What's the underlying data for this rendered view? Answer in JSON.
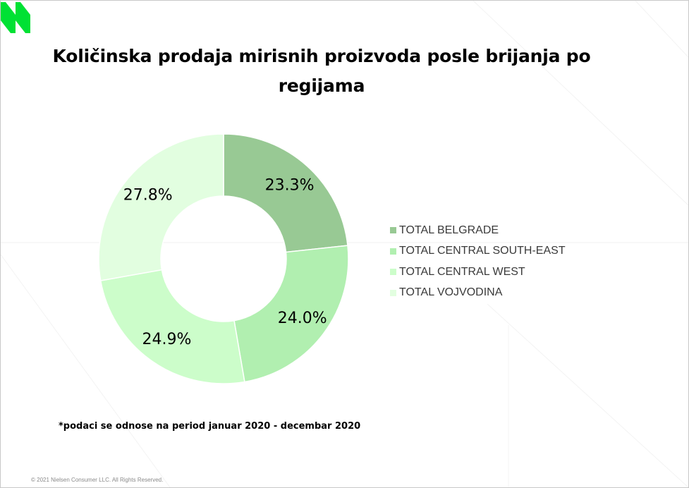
{
  "title": "Količinska prodaja mirisnih proizvoda posle brijanja po regijama",
  "footnote": "*podaci se odnose na period januar 2020 - decembar 2020",
  "copyright": "© 2021 Nielsen Consumer LLC. All Rights Reserved.",
  "logo": {
    "icon": "nielsen-logo-icon",
    "color": "#00e134"
  },
  "chart_data": {
    "type": "pie",
    "variant": "donut",
    "title": "Količinska prodaja mirisnih proizvoda posle brijanja po regijama",
    "categories": [
      "TOTAL BELGRADE",
      "TOTAL CENTRAL SOUTH-EAST",
      "TOTAL CENTRAL WEST",
      "TOTAL VOJVODINA"
    ],
    "values": [
      23.3,
      24.0,
      24.9,
      27.8
    ],
    "data_labels": [
      "23.3%",
      "24.0%",
      "24.9%",
      "27.8%"
    ],
    "colors": [
      "#98c994",
      "#b1efb0",
      "#ccfdca",
      "#e2fee0"
    ],
    "legend_position": "right",
    "unit": "%"
  }
}
